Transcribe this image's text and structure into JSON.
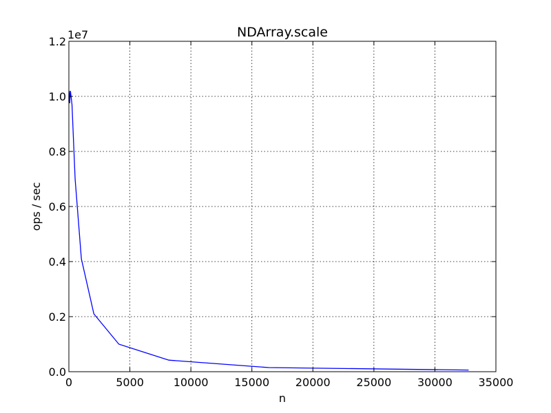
{
  "chart_data": {
    "type": "line",
    "title": "NDArray.scale",
    "xlabel": "n",
    "ylabel": "ops / sec",
    "y_scale_label": "1e7",
    "xlim": [
      0,
      35000
    ],
    "ylim": [
      0,
      12000000
    ],
    "x_ticks": [
      0,
      5000,
      10000,
      15000,
      20000,
      25000,
      30000,
      35000
    ],
    "x_tick_labels": [
      "0",
      "5000",
      "10000",
      "15000",
      "20000",
      "25000",
      "30000",
      "35000"
    ],
    "y_ticks": [
      0,
      2000000,
      4000000,
      6000000,
      8000000,
      10000000,
      12000000
    ],
    "y_tick_labels": [
      "0.0",
      "0.2",
      "0.4",
      "0.6",
      "0.8",
      "1.0",
      "1.2"
    ],
    "grid": true,
    "series": [
      {
        "color": "#0000ff",
        "x": [
          1,
          2,
          4,
          8,
          16,
          32,
          64,
          128,
          256,
          512,
          1024,
          2048,
          4096,
          8192,
          16384,
          32768
        ],
        "y": [
          9800000,
          10000000,
          10100000,
          10150000,
          10200000,
          10150000,
          9750000,
          10200000,
          9700000,
          7000000,
          4100000,
          2100000,
          1000000,
          420000,
          150000,
          60000
        ]
      }
    ]
  }
}
